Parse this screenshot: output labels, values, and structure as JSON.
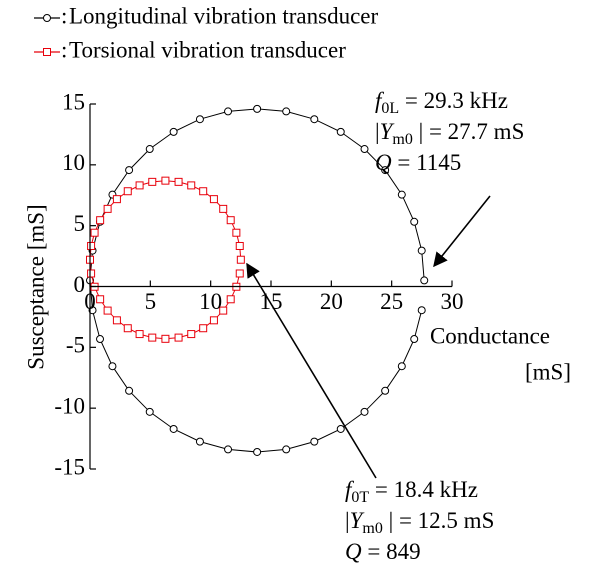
{
  "chart_data": {
    "type": "scatter",
    "legend_separator": ":",
    "x_label": [
      "Conductance",
      "[mS]"
    ],
    "y_label": "Susceptance [mS]",
    "xlim": [
      0,
      30
    ],
    "xticks": [
      0,
      5,
      10,
      15,
      20,
      25,
      30
    ],
    "ylim": [
      -15,
      15
    ],
    "yticks": [
      -15,
      -10,
      -5,
      0,
      5,
      10,
      15
    ],
    "series": [
      {
        "name": "Longitudinal vibration transducer",
        "color": "#000000",
        "marker": "circle",
        "x": [
          27.7,
          27.49,
          26.87,
          25.84,
          24.46,
          22.75,
          20.78,
          18.59,
          16.26,
          13.85,
          11.44,
          9.11,
          6.93,
          4.95,
          3.24,
          1.86,
          0.83,
          0.21,
          0,
          0.21,
          0.83,
          1.86,
          3.24,
          4.95,
          6.93,
          9.11,
          11.44,
          13.85,
          16.26,
          18.59,
          20.78,
          22.75,
          24.46,
          25.84,
          26.87,
          27.49
        ],
        "values": [
          0.5,
          2.95,
          5.32,
          7.55,
          9.57,
          11.3,
          12.71,
          13.75,
          14.39,
          14.6,
          14.39,
          13.75,
          12.71,
          11.3,
          9.57,
          7.55,
          5.32,
          2.95,
          0.5,
          -1.95,
          -4.32,
          -6.55,
          -8.57,
          -10.3,
          -11.71,
          -12.75,
          -13.39,
          -13.6,
          -13.39,
          -12.75,
          -11.71,
          -10.3,
          -8.57,
          -6.55,
          -4.32,
          -1.95
        ]
      },
      {
        "name": "Torsional vibration transducer",
        "color": "#e8000b",
        "marker": "square",
        "x": [
          12.5,
          12.41,
          12.13,
          11.66,
          11.04,
          10.27,
          9.38,
          8.39,
          7.34,
          6.25,
          5.16,
          4.11,
          3.13,
          2.23,
          1.46,
          0.84,
          0.38,
          0.09,
          0,
          0.09,
          0.38,
          0.84,
          1.46,
          2.23,
          3.13,
          4.11,
          5.16,
          6.25,
          7.34,
          8.39,
          9.38,
          10.27,
          11.04,
          11.66,
          12.13,
          12.41
        ],
        "values": [
          2.2,
          3.33,
          4.42,
          5.45,
          6.38,
          7.18,
          7.83,
          8.31,
          8.6,
          8.7,
          8.6,
          8.31,
          7.83,
          7.18,
          6.38,
          5.45,
          4.42,
          3.33,
          2.2,
          1.07,
          -0.02,
          -1.05,
          -1.98,
          -2.78,
          -3.43,
          -3.91,
          -4.2,
          -4.3,
          -4.2,
          -3.91,
          -3.43,
          -2.78,
          -1.98,
          -1.05,
          -0.02,
          1.07
        ]
      }
    ],
    "annotations": [
      [
        {
          "pre": "",
          "italic": "f",
          "sub": "0L",
          "rest": " = 29.3 kHz"
        },
        {
          "pre": "|",
          "italic": "Y",
          "sub": "m0",
          "rest": " | = 27.7 mS"
        },
        {
          "pre": "",
          "italic": "Q",
          "sub": "",
          "rest": " = 1145"
        }
      ],
      [
        {
          "pre": "",
          "italic": "f",
          "sub": "0T",
          "rest": " = 18.4 kHz"
        },
        {
          "pre": "|",
          "italic": "Y",
          "sub": "m0",
          "rest": " | = 12.5 mS"
        },
        {
          "pre": "",
          "italic": "Q",
          "sub": "",
          "rest": " = 849"
        }
      ]
    ]
  }
}
